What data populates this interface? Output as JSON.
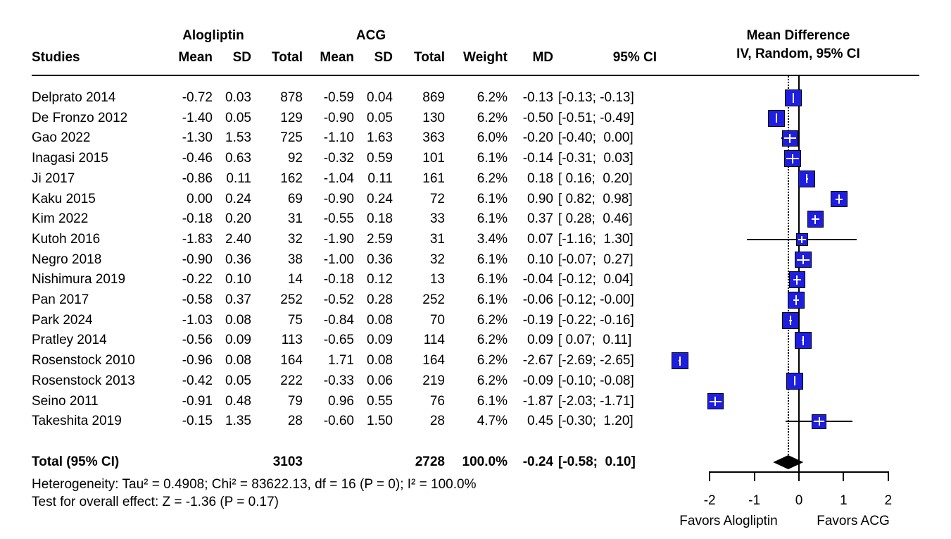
{
  "chart_data": {
    "type": "forest",
    "title": "Mean Difference",
    "model_label": "IV, Random, 95% CI",
    "studies_header": "Studies",
    "group1": "Alogliptin",
    "group2": "ACG",
    "col_headers": [
      "Mean",
      "SD",
      "Total",
      "Mean",
      "SD",
      "Total",
      "Weight",
      "MD",
      "95% CI"
    ],
    "studies": [
      {
        "name": "Delprato 2014",
        "cells": [
          "-0.72",
          "0.03",
          "878",
          "-0.59",
          "0.04",
          "869",
          "6.2%",
          "-0.13",
          "[-0.13; -0.13]"
        ],
        "md": -0.13,
        "lo": -0.13,
        "hi": -0.13,
        "weight": 6.2
      },
      {
        "name": "De Fronzo 2012",
        "cells": [
          "-1.40",
          "0.05",
          "129",
          "-0.90",
          "0.05",
          "130",
          "6.2%",
          "-0.50",
          "[-0.51; -0.49]"
        ],
        "md": -0.5,
        "lo": -0.51,
        "hi": -0.49,
        "weight": 6.2
      },
      {
        "name": "Gao 2022",
        "cells": [
          "-1.30",
          "1.53",
          "725",
          "-1.10",
          "1.63",
          "363",
          "6.0%",
          "-0.20",
          "[-0.40;  0.00]"
        ],
        "md": -0.2,
        "lo": -0.4,
        "hi": 0.0,
        "weight": 6.0
      },
      {
        "name": "Inagasi 2015",
        "cells": [
          "-0.46",
          "0.63",
          "92",
          "-0.32",
          "0.59",
          "101",
          "6.1%",
          "-0.14",
          "[-0.31;  0.03]"
        ],
        "md": -0.14,
        "lo": -0.31,
        "hi": 0.03,
        "weight": 6.1
      },
      {
        "name": "Ji 2017",
        "cells": [
          "-0.86",
          "0.11",
          "162",
          "-1.04",
          "0.11",
          "161",
          "6.2%",
          "0.18",
          "[ 0.16;  0.20]"
        ],
        "md": 0.18,
        "lo": 0.16,
        "hi": 0.2,
        "weight": 6.2
      },
      {
        "name": "Kaku 2015",
        "cells": [
          "0.00",
          "0.24",
          "69",
          "-0.90",
          "0.24",
          "72",
          "6.1%",
          "0.90",
          "[ 0.82;  0.98]"
        ],
        "md": 0.9,
        "lo": 0.82,
        "hi": 0.98,
        "weight": 6.1
      },
      {
        "name": "Kim 2022",
        "cells": [
          "-0.18",
          "0.20",
          "31",
          "-0.55",
          "0.18",
          "33",
          "6.1%",
          "0.37",
          "[ 0.28;  0.46]"
        ],
        "md": 0.37,
        "lo": 0.28,
        "hi": 0.46,
        "weight": 6.1
      },
      {
        "name": "Kutoh 2016",
        "cells": [
          "-1.83",
          "2.40",
          "32",
          "-1.90",
          "2.59",
          "31",
          "3.4%",
          "0.07",
          "[-1.16;  1.30]"
        ],
        "md": 0.07,
        "lo": -1.16,
        "hi": 1.3,
        "weight": 3.4
      },
      {
        "name": "Negro 2018",
        "cells": [
          "-0.90",
          "0.36",
          "38",
          "-1.00",
          "0.36",
          "32",
          "6.1%",
          "0.10",
          "[-0.07;  0.27]"
        ],
        "md": 0.1,
        "lo": -0.07,
        "hi": 0.27,
        "weight": 6.1
      },
      {
        "name": "Nishimura 2019",
        "cells": [
          "-0.22",
          "0.10",
          "14",
          "-0.18",
          "0.12",
          "13",
          "6.1%",
          "-0.04",
          "[-0.12;  0.04]"
        ],
        "md": -0.04,
        "lo": -0.12,
        "hi": 0.04,
        "weight": 6.1
      },
      {
        "name": "Pan 2017",
        "cells": [
          "-0.58",
          "0.37",
          "252",
          "-0.52",
          "0.28",
          "252",
          "6.1%",
          "-0.06",
          "[-0.12; -0.00]"
        ],
        "md": -0.06,
        "lo": -0.12,
        "hi": 0.0,
        "weight": 6.1
      },
      {
        "name": "Park 2024",
        "cells": [
          "-1.03",
          "0.08",
          "75",
          "-0.84",
          "0.08",
          "70",
          "6.2%",
          "-0.19",
          "[-0.22; -0.16]"
        ],
        "md": -0.19,
        "lo": -0.22,
        "hi": -0.16,
        "weight": 6.2
      },
      {
        "name": "Pratley 2014",
        "cells": [
          "-0.56",
          "0.09",
          "113",
          "-0.65",
          "0.09",
          "114",
          "6.2%",
          "0.09",
          "[ 0.07;  0.11]"
        ],
        "md": 0.09,
        "lo": 0.07,
        "hi": 0.11,
        "weight": 6.2
      },
      {
        "name": "Rosenstock 2010",
        "cells": [
          "-0.96",
          "0.08",
          "164",
          "1.71",
          "0.08",
          "164",
          "6.2%",
          "-2.67",
          "[-2.69; -2.65]"
        ],
        "md": -2.67,
        "lo": -2.69,
        "hi": -2.65,
        "weight": 6.2
      },
      {
        "name": "Rosenstock 2013",
        "cells": [
          "-0.42",
          "0.05",
          "222",
          "-0.33",
          "0.06",
          "219",
          "6.2%",
          "-0.09",
          "[-0.10; -0.08]"
        ],
        "md": -0.09,
        "lo": -0.1,
        "hi": -0.08,
        "weight": 6.2
      },
      {
        "name": "Seino 2011",
        "cells": [
          "-0.91",
          "0.48",
          "79",
          "0.96",
          "0.55",
          "76",
          "6.1%",
          "-1.87",
          "[-2.03; -1.71]"
        ],
        "md": -1.87,
        "lo": -2.03,
        "hi": -1.71,
        "weight": 6.1
      },
      {
        "name": "Takeshita 2019",
        "cells": [
          "-0.15",
          "1.35",
          "28",
          "-0.60",
          "1.50",
          "28",
          "4.7%",
          "0.45",
          "[-0.30;  1.20]"
        ],
        "md": 0.45,
        "lo": -0.3,
        "hi": 1.2,
        "weight": 4.7
      }
    ],
    "total": {
      "label": "Total (95% CI)",
      "cells": [
        "",
        "",
        "3103",
        "",
        "",
        "2728",
        "100.0%",
        "-0.24",
        "[-0.58;  0.10]"
      ],
      "md": -0.24,
      "lo": -0.58,
      "hi": 0.1
    },
    "heterogeneity": "Heterogeneity: Tau² = 0.4908; Chi² = 83622.13, df = 16 (P = 0); I² = 100.0%",
    "overall_test": "Test for overall effect: Z = -1.36 (P = 0.17)",
    "axis": {
      "tick_values": [
        -2,
        -1,
        0,
        1,
        2
      ],
      "tick_labels": [
        "-2",
        "-1",
        "0",
        "1",
        "2"
      ],
      "xlim": [
        -2,
        2
      ],
      "favors_left": "Favors Alogliptin",
      "favors_right": "Favors ACG"
    },
    "colors": {
      "square": "#1E1EE0",
      "diamond": "#000000",
      "line": "#000000"
    }
  }
}
